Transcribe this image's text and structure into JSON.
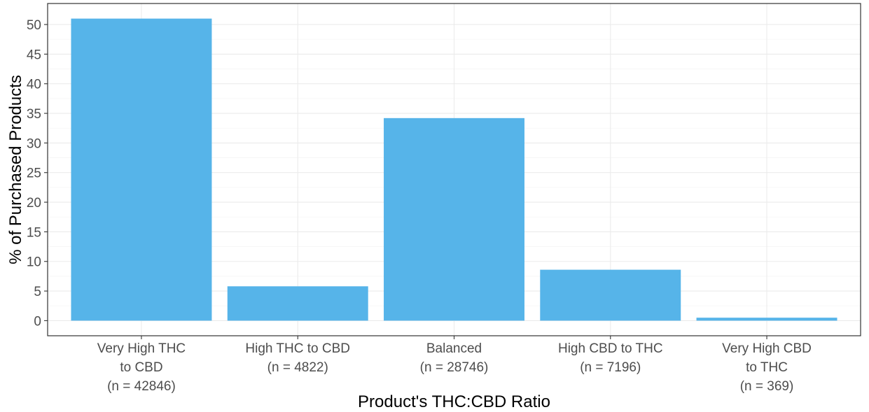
{
  "chart_data": {
    "type": "bar",
    "categories": [
      [
        "Very High THC",
        "to CBD",
        "(n = 42846)"
      ],
      [
        "High THC to CBD",
        "(n = 4822)"
      ],
      [
        "Balanced",
        "(n = 28746)"
      ],
      [
        "High CBD to THC",
        "(n = 7196)"
      ],
      [
        "Very High CBD",
        "to THC",
        "(n = 369)"
      ]
    ],
    "values": [
      51.0,
      5.8,
      34.2,
      8.6,
      0.5
    ],
    "xlabel": "Product's THC:CBD Ratio",
    "ylabel": "% of Purchased Products",
    "ylim": [
      -2.55,
      53.55
    ],
    "yticks": [
      0,
      5,
      10,
      15,
      20,
      25,
      30,
      35,
      40,
      45,
      50
    ],
    "grid": true,
    "colors": {
      "bar": "#56B4E9",
      "grid_major": "#ebebeb",
      "grid_minor": "#f5f5f5",
      "panel_border": "#333333"
    }
  }
}
